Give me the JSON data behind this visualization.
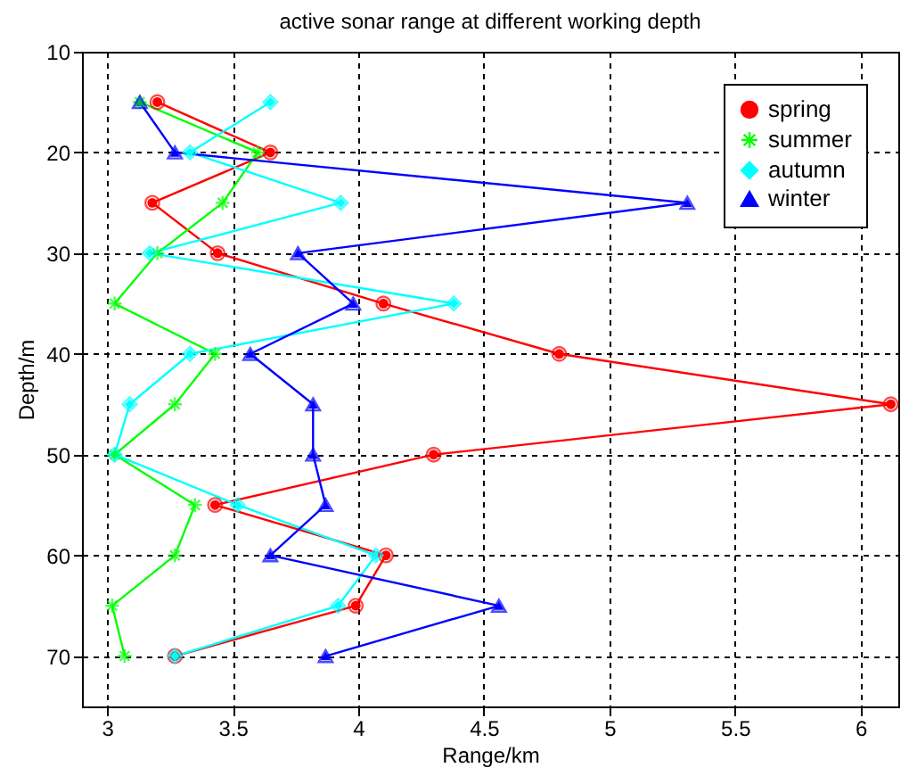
{
  "chart_data": {
    "type": "line",
    "title": "active sonar range at different working depth",
    "xlabel": "Range/km",
    "ylabel": "Depth/m",
    "xlim": [
      2.9,
      6.15
    ],
    "xticks": [
      3,
      3.5,
      4,
      4.5,
      5,
      5.5,
      6
    ],
    "ylim": [
      75,
      10
    ],
    "yticks": [
      10,
      20,
      30,
      40,
      50,
      60,
      70
    ],
    "grid": true,
    "legend": "top right",
    "line_style": "solid",
    "series": [
      {
        "name": "spring",
        "color": "#ff0000",
        "marker": "circle",
        "x": [
          3.2,
          3.65,
          3.18,
          3.44,
          4.1,
          4.8,
          6.12,
          4.3,
          3.43,
          4.11,
          3.99,
          3.27
        ],
        "values": [
          15,
          20,
          25,
          30,
          35,
          40,
          45,
          50,
          55,
          60,
          65,
          70
        ]
      },
      {
        "name": "summer",
        "color": "#00ff00",
        "marker": "cross",
        "x": [
          3.13,
          3.6,
          3.46,
          3.2,
          3.03,
          3.43,
          3.27,
          3.03,
          3.35,
          3.27,
          3.02,
          3.07
        ],
        "values": [
          15,
          20,
          25,
          30,
          35,
          40,
          45,
          50,
          55,
          60,
          65,
          70
        ]
      },
      {
        "name": "autumn",
        "color": "#00ffff",
        "marker": "diamond",
        "x": [
          3.65,
          3.33,
          3.93,
          3.17,
          4.38,
          3.33,
          3.09,
          3.03,
          3.52,
          4.07,
          3.92,
          3.27
        ],
        "values": [
          15,
          20,
          25,
          30,
          35,
          40,
          45,
          50,
          55,
          60,
          65,
          70
        ]
      },
      {
        "name": "winter",
        "color": "#0000ff",
        "marker": "triangle",
        "x": [
          3.13,
          3.27,
          5.31,
          3.76,
          3.98,
          3.57,
          3.82,
          3.82,
          3.87,
          3.65,
          4.56,
          3.87
        ],
        "values": [
          15,
          20,
          25,
          30,
          35,
          40,
          45,
          50,
          55,
          60,
          65,
          70
        ]
      }
    ]
  }
}
